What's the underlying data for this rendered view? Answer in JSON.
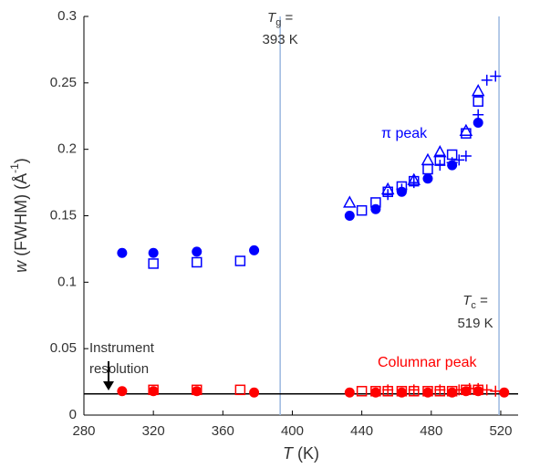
{
  "chart_data": {
    "type": "scatter",
    "xlabel": {
      "symbol": "T",
      "text": " (K)"
    },
    "ylabel": {
      "symbol": "w",
      "text": " (FWHM) (Å",
      "sup": "-1",
      "end": ")"
    },
    "xlim": [
      280,
      530
    ],
    "xticks": [
      280,
      320,
      360,
      400,
      440,
      480,
      520
    ],
    "ylim": [
      0,
      0.3
    ],
    "yticks": [
      0,
      0.05,
      0.1,
      0.15,
      0.2,
      0.25,
      0.3
    ],
    "series": [
      {
        "marker": "circle",
        "color": "#0000ff",
        "x": [
          302,
          320,
          345,
          378,
          433,
          448,
          463,
          478,
          492,
          507
        ],
        "values": [
          0.122,
          0.122,
          0.123,
          0.124,
          0.15,
          0.155,
          0.168,
          0.178,
          0.188,
          0.22
        ]
      },
      {
        "marker": "square",
        "color": "#0000ff",
        "x": [
          320,
          345,
          370,
          440,
          448,
          455,
          463,
          470,
          478,
          485,
          492,
          500,
          507
        ],
        "values": [
          0.114,
          0.115,
          0.116,
          0.154,
          0.16,
          0.168,
          0.172,
          0.176,
          0.185,
          0.192,
          0.196,
          0.212,
          0.236
        ]
      },
      {
        "marker": "triangle",
        "color": "#0000ff",
        "x": [
          433,
          455,
          470,
          478,
          485,
          500,
          507
        ],
        "values": [
          0.16,
          0.17,
          0.177,
          0.192,
          0.198,
          0.214,
          0.244
        ]
      },
      {
        "marker": "plus",
        "color": "#0000ff",
        "x": [
          455,
          463,
          470,
          485,
          492,
          496,
          500,
          507,
          512,
          517
        ],
        "values": [
          0.166,
          0.17,
          0.175,
          0.188,
          0.19,
          0.192,
          0.195,
          0.226,
          0.252,
          0.255
        ]
      },
      {
        "marker": "circle",
        "color": "#ff0000",
        "x": [
          302,
          320,
          345,
          378,
          433,
          448,
          463,
          478,
          492,
          500,
          507,
          522
        ],
        "values": [
          0.018,
          0.018,
          0.018,
          0.017,
          0.017,
          0.017,
          0.017,
          0.017,
          0.017,
          0.018,
          0.018,
          0.017
        ]
      },
      {
        "marker": "square",
        "color": "#ff0000",
        "x": [
          320,
          345,
          370,
          440,
          448,
          455,
          463,
          470,
          478,
          485,
          492,
          500,
          507
        ],
        "values": [
          0.019,
          0.019,
          0.019,
          0.018,
          0.018,
          0.018,
          0.018,
          0.018,
          0.018,
          0.018,
          0.018,
          0.019,
          0.019
        ]
      },
      {
        "marker": "plus",
        "color": "#ff0000",
        "x": [
          455,
          470,
          485,
          496,
          502,
          507,
          512,
          517
        ],
        "values": [
          0.019,
          0.019,
          0.019,
          0.019,
          0.02,
          0.02,
          0.019,
          0.018
        ]
      }
    ],
    "vlines": [
      {
        "x": 393,
        "symbol": "T",
        "sub": "g",
        "text": " =",
        "line2": "393 K"
      },
      {
        "x": 519,
        "symbol": "T",
        "sub": "c",
        "text": " =",
        "line2": "519 K"
      }
    ],
    "hline": {
      "y": 0.016,
      "text": "Instrument",
      "line2": "resolution"
    },
    "annotations": [
      {
        "text": "π peak",
        "color": "#0000ff"
      },
      {
        "text": "Columnar peak",
        "color": "#ff0000"
      }
    ]
  }
}
